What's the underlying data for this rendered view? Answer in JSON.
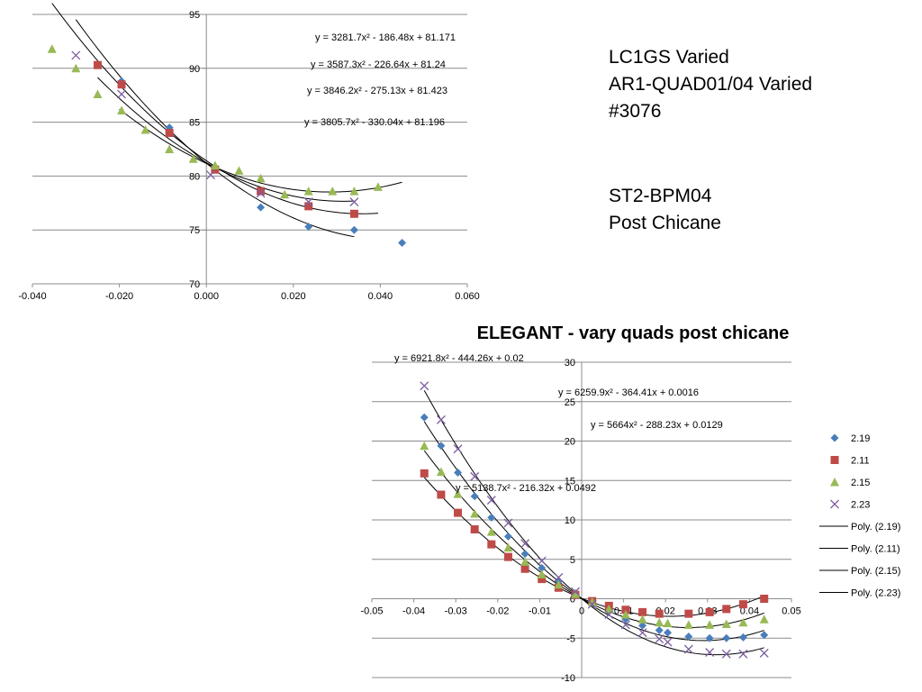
{
  "notes": {
    "block1": [
      "LC1GS Varied",
      "AR1-QUAD01/04 Varied",
      "#3076"
    ],
    "block2": [
      "ST2-BPM04",
      "Post Chicane"
    ]
  },
  "chart_data": [
    {
      "type": "scatter",
      "title": "",
      "xlabel": "",
      "ylabel": "",
      "xlim": [
        -0.04,
        0.06
      ],
      "ylim": [
        70,
        95
      ],
      "x_ticks": [
        -0.04,
        -0.02,
        0.0,
        0.02,
        0.04,
        0.06
      ],
      "x_tick_labels": [
        "-0.040",
        "-0.020",
        "0.000",
        "0.020",
        "0.040",
        "0.060"
      ],
      "y_ticks": [
        70,
        75,
        80,
        85,
        90,
        95
      ],
      "y_tick_labels": [
        "70",
        "75",
        "80",
        "85",
        "90",
        "95"
      ],
      "grid": "horizontal",
      "legend": "none",
      "series": [
        {
          "marker": "diamond",
          "color": "#4a7ebb",
          "x": [
            -0.0195,
            -0.0085,
            0.002,
            0.0125,
            0.0235,
            0.034,
            0.045
          ],
          "y": [
            88.8,
            84.5,
            80.7,
            77.1,
            75.3,
            75.0,
            73.8
          ],
          "fit": [
            3281.7,
            -186.48,
            81.171
          ],
          "fit_range": [
            -0.02,
            0.045
          ]
        },
        {
          "marker": "square",
          "color": "#be4b48",
          "x": [
            -0.025,
            -0.0195,
            -0.0085,
            0.002,
            0.0125,
            0.0235,
            0.034
          ],
          "y": [
            90.3,
            88.5,
            84.0,
            80.6,
            78.6,
            77.2,
            76.5
          ],
          "fit": [
            3587.3,
            -226.64,
            81.24
          ],
          "fit_range": [
            -0.025,
            0.034
          ]
        },
        {
          "marker": "triangle",
          "color": "#98b954",
          "x": [
            -0.0355,
            -0.03,
            -0.025,
            -0.0195,
            -0.014,
            -0.0085,
            -0.003,
            0.002,
            0.0075,
            0.0125,
            0.018,
            0.0235,
            0.029,
            0.034,
            0.0395
          ],
          "y": [
            91.8,
            90.0,
            87.6,
            86.1,
            84.3,
            82.5,
            81.6,
            81.0,
            80.5,
            79.8,
            78.3,
            78.6,
            78.6,
            78.6,
            79.0
          ],
          "fit": [
            3846.2,
            -275.13,
            81.423
          ],
          "fit_range": [
            -0.0355,
            0.0395
          ]
        },
        {
          "marker": "x",
          "color": "#7d60a0",
          "x": [
            -0.03,
            -0.0195,
            0.001,
            0.0125,
            0.0235,
            0.034
          ],
          "y": [
            91.2,
            87.6,
            80.1,
            78.4,
            77.6,
            77.6
          ],
          "fit": [
            3805.7,
            -330.04,
            81.196
          ],
          "fit_range": [
            -0.03,
            0.034
          ]
        }
      ],
      "equations": [
        "y = 3281.7x² - 186.48x + 81.171",
        "y = 3587.3x² - 226.64x + 81.24",
        "y = 3846.2x² - 275.13x + 81.423",
        "y = 3805.7x² - 330.04x + 81.196"
      ]
    },
    {
      "type": "scatter",
      "title": "ELEGANT - vary quads post chicane",
      "xlabel": "",
      "ylabel": "",
      "xlim": [
        -0.05,
        0.05
      ],
      "ylim": [
        -10,
        30
      ],
      "x_ticks": [
        -0.05,
        -0.04,
        -0.03,
        -0.02,
        -0.01,
        0,
        0.01,
        0.02,
        0.03,
        0.04,
        0.05
      ],
      "x_tick_labels": [
        "-0.05",
        "-0.04",
        "-0.03",
        "-0.02",
        "-0.01",
        "0",
        "0.01",
        "0.02",
        "0.03",
        "0.04",
        "0.05"
      ],
      "y_ticks": [
        -10,
        -5,
        0,
        5,
        10,
        15,
        20,
        25,
        30
      ],
      "y_tick_labels": [
        "-10",
        "-5",
        "0",
        "5",
        "10",
        "15",
        "20",
        "25",
        "30"
      ],
      "grid": "horizontal",
      "legend": "right",
      "series": [
        {
          "name": "2.19",
          "marker": "diamond",
          "color": "#4a7ebb",
          "x": [
            -0.0375,
            -0.0335,
            -0.0295,
            -0.0255,
            -0.0215,
            -0.0175,
            -0.0135,
            -0.0095,
            -0.0055,
            -0.0015,
            0.0025,
            0.0065,
            0.0105,
            0.0145,
            0.0185,
            0.0205,
            0.0255,
            0.0305,
            0.0345,
            0.0385,
            0.0435
          ],
          "y": [
            23.0,
            19.4,
            16.0,
            13.0,
            10.3,
            7.9,
            5.7,
            3.9,
            2.2,
            0.7,
            -0.5,
            -1.6,
            -2.6,
            -3.4,
            -4.0,
            -4.3,
            -4.8,
            -5.0,
            -5.0,
            -4.9,
            -4.6
          ],
          "fit": [
            6259.9,
            -364.41,
            0.0016
          ],
          "fit_range": [
            -0.0375,
            0.0435
          ]
        },
        {
          "name": "2.11",
          "marker": "square",
          "color": "#be4b48",
          "x": [
            -0.0375,
            -0.0335,
            -0.0295,
            -0.0255,
            -0.0215,
            -0.0175,
            -0.0135,
            -0.0095,
            -0.0055,
            -0.0015,
            0.0025,
            0.0065,
            0.0105,
            0.0145,
            0.0185,
            0.0255,
            0.0305,
            0.0345,
            0.0385,
            0.0435
          ],
          "y": [
            15.9,
            13.2,
            10.9,
            8.8,
            6.9,
            5.3,
            3.8,
            2.5,
            1.4,
            0.5,
            -0.3,
            -0.9,
            -1.4,
            -1.7,
            -1.9,
            -1.9,
            -1.7,
            -1.3,
            -0.7,
            0.0
          ],
          "fit": [
            5138.7,
            -216.32,
            0.0492
          ],
          "fit_range": [
            -0.0375,
            0.0435
          ]
        },
        {
          "name": "2.15",
          "marker": "triangle",
          "color": "#98b954",
          "x": [
            -0.0375,
            -0.0335,
            -0.0295,
            -0.0255,
            -0.0215,
            -0.0175,
            -0.0135,
            -0.0095,
            -0.0055,
            -0.0015,
            0.0025,
            0.0065,
            0.0105,
            0.0145,
            0.0185,
            0.0205,
            0.0255,
            0.0305,
            0.0345,
            0.0385,
            0.0435
          ],
          "y": [
            19.4,
            16.1,
            13.3,
            10.8,
            8.5,
            6.5,
            4.7,
            3.1,
            1.8,
            0.6,
            -0.4,
            -1.3,
            -2.0,
            -2.6,
            -3.0,
            -3.1,
            -3.3,
            -3.3,
            -3.2,
            -3.0,
            -2.6
          ],
          "fit": [
            5664,
            -288.23,
            0.0129
          ],
          "fit_range": [
            -0.0375,
            0.0435
          ]
        },
        {
          "name": "2.23",
          "marker": "x",
          "color": "#7d60a0",
          "x": [
            -0.0375,
            -0.0335,
            -0.0295,
            -0.0255,
            -0.0215,
            -0.0175,
            -0.0135,
            -0.0095,
            -0.0055,
            -0.0015,
            0.0025,
            0.0065,
            0.0105,
            0.0145,
            0.0185,
            0.0205,
            0.0255,
            0.0305,
            0.0345,
            0.0385,
            0.0435
          ],
          "y": [
            27.0,
            22.7,
            19.0,
            15.5,
            12.5,
            9.6,
            7.0,
            4.8,
            2.7,
            0.9,
            -0.7,
            -2.0,
            -3.3,
            -4.3,
            -5.1,
            -5.5,
            -6.4,
            -6.8,
            -7.0,
            -7.0,
            -6.9
          ],
          "fit": [
            6921.8,
            -444.26,
            0.02
          ],
          "fit_range": [
            -0.0375,
            0.0435
          ]
        }
      ],
      "equations": [
        "y = 6921.8x² - 444.26x + 0.02",
        "y = 6259.9x² - 364.41x + 0.0016",
        "y = 5664x² - 288.23x + 0.0129",
        "y = 5138.7x² - 216.32x + 0.0492"
      ],
      "legend_entries": [
        {
          "label": "2.19",
          "marker": "diamond",
          "color": "#4a7ebb"
        },
        {
          "label": "2.11",
          "marker": "square",
          "color": "#be4b48"
        },
        {
          "label": "2.15",
          "marker": "triangle",
          "color": "#98b954"
        },
        {
          "label": "2.23",
          "marker": "x",
          "color": "#7d60a0"
        },
        {
          "label": "Poly. (2.19)",
          "marker": "line",
          "color": "#000000"
        },
        {
          "label": "Poly. (2.11)",
          "marker": "line",
          "color": "#000000"
        },
        {
          "label": "Poly. (2.15)",
          "marker": "line",
          "color": "#000000"
        },
        {
          "label": "Poly. (2.23)",
          "marker": "line",
          "color": "#000000"
        }
      ]
    }
  ]
}
